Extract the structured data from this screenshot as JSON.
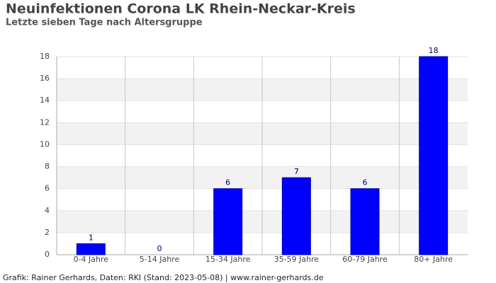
{
  "chart_data": {
    "type": "bar",
    "title": "Neuinfektionen Corona LK Rhein-Neckar-Kreis",
    "subtitle": "Letzte sieben Tage nach Altersgruppe",
    "categories": [
      "0-4 Jahre",
      "5-14 Jahre",
      "15-34 Jahre",
      "35-59 Jahre",
      "60-79 Jahre",
      "80+ Jahre"
    ],
    "values": [
      1,
      0,
      6,
      7,
      6,
      18
    ],
    "color": "#0000ff",
    "ylim": [
      0,
      18
    ],
    "yticks": [
      0,
      2,
      4,
      6,
      8,
      10,
      12,
      14,
      16,
      18
    ],
    "grid": true,
    "caption": "Grafik: Rainer Gerhards, Daten: RKI (Stand: 2023-05-08) | www.rainer-gerhards.de"
  }
}
